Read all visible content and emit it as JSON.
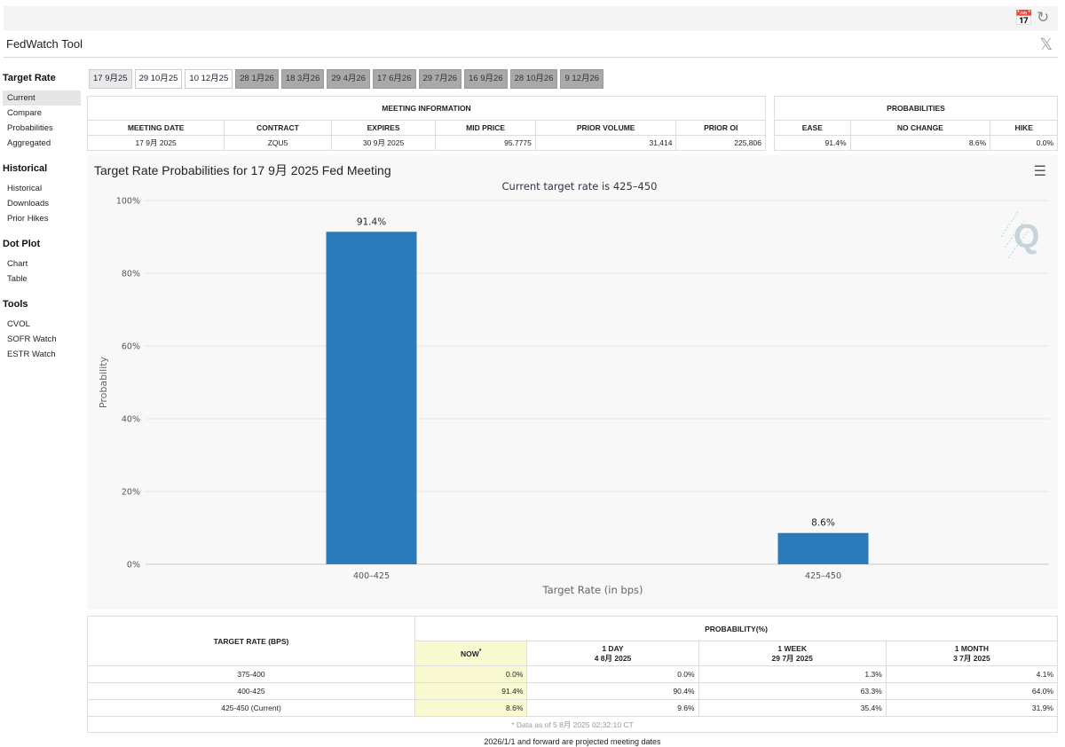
{
  "app_title": "FedWatch Tool",
  "sidebar": {
    "groups": [
      {
        "heading": "Target Rate",
        "items": [
          "Current",
          "Compare",
          "Probabilities",
          "Aggregated"
        ]
      },
      {
        "heading": "Historical",
        "items": [
          "Historical",
          "Downloads",
          "Prior Hikes"
        ]
      },
      {
        "heading": "Dot Plot",
        "items": [
          "Chart",
          "Table"
        ]
      },
      {
        "heading": "Tools",
        "items": [
          "CVOL",
          "SOFR Watch",
          "ESTR Watch"
        ]
      }
    ]
  },
  "tabs": [
    "17 9月25",
    "29 10月25",
    "10 12月25",
    "28 1月26",
    "18 3月26",
    "29 4月26",
    "17 6月26",
    "29 7月26",
    "16 9月26",
    "28 10月26",
    "9 12月26"
  ],
  "meeting_info": {
    "title": "MEETING INFORMATION",
    "headers": [
      "MEETING DATE",
      "CONTRACT",
      "EXPIRES",
      "MID PRICE",
      "PRIOR VOLUME",
      "PRIOR OI"
    ],
    "values": [
      "17 9月 2025",
      "ZQU5",
      "30 9月 2025",
      "95.7775",
      "31,414",
      "225,806"
    ]
  },
  "probabilities": {
    "title": "PROBABILITIES",
    "headers": [
      "EASE",
      "NO CHANGE",
      "HIKE"
    ],
    "values": [
      "91.4%",
      "8.6%",
      "0.0%"
    ]
  },
  "chart": {
    "title": "Target Rate Probabilities for 17 9月 2025 Fed Meeting",
    "watermark": "Q"
  },
  "chart_data": {
    "type": "bar",
    "title": "Current target rate is 425–450",
    "categories": [
      "400–425",
      "425–450"
    ],
    "values": [
      91.4,
      8.6
    ],
    "data_labels": [
      "91.4%",
      "8.6%"
    ],
    "xlabel": "Target Rate (in bps)",
    "ylabel": "Probability",
    "ylim": [
      0,
      100
    ],
    "yticks": [
      "0%",
      "20%",
      "40%",
      "60%",
      "80%",
      "100%"
    ],
    "bar_color": "#2b7bba",
    "grid": true
  },
  "prob_table": {
    "header_rate": "TARGET RATE (BPS)",
    "header_prob": "PROBABILITY(%)",
    "columns": [
      {
        "label": "NOW",
        "sub": "",
        "mark": "*"
      },
      {
        "label": "1 DAY",
        "sub": "4 8月 2025",
        "mark": ""
      },
      {
        "label": "1 WEEK",
        "sub": "29 7月 2025",
        "mark": ""
      },
      {
        "label": "1 MONTH",
        "sub": "3 7月 2025",
        "mark": ""
      }
    ],
    "rows": [
      {
        "rate": "375-400",
        "values": [
          "0.0%",
          "0.0%",
          "1.3%",
          "4.1%"
        ]
      },
      {
        "rate": "400-425",
        "values": [
          "91.4%",
          "90.4%",
          "63.3%",
          "64.0%"
        ]
      },
      {
        "rate": "425-450 (Current)",
        "values": [
          "8.6%",
          "9.6%",
          "35.4%",
          "31.9%"
        ]
      }
    ],
    "footnote": "* Data as of 5 8月 2025 02:32:10 CT"
  },
  "bottom_note": "2026/1/1 and forward are projected meeting dates",
  "icons": {
    "top_left": "calendar-download-icon",
    "top_right": "refresh-icon",
    "social": "x-twitter-icon",
    "menu": "hamburger-menu-icon"
  }
}
